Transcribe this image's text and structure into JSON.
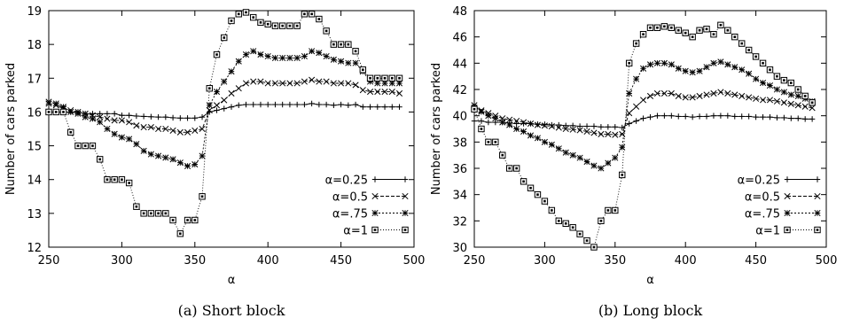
{
  "chart_data": [
    {
      "type": "line",
      "caption": "(a) Short block",
      "xlabel": "α",
      "ylabel": "Number of cars parked",
      "xlim": [
        250,
        500
      ],
      "ylim": [
        12,
        19
      ],
      "xticks": [
        250,
        300,
        350,
        400,
        450,
        500
      ],
      "yticks": [
        12,
        13,
        14,
        15,
        16,
        17,
        18,
        19
      ],
      "legend_position": "bottom-right",
      "x": [
        250,
        255,
        260,
        265,
        270,
        275,
        280,
        285,
        290,
        295,
        300,
        305,
        310,
        315,
        320,
        325,
        330,
        335,
        340,
        345,
        350,
        355,
        360,
        365,
        370,
        375,
        380,
        385,
        390,
        395,
        400,
        405,
        410,
        415,
        420,
        425,
        430,
        435,
        440,
        445,
        450,
        455,
        460,
        465,
        470,
        475,
        480,
        485,
        490
      ],
      "series": [
        {
          "name": "α=0.25",
          "marker": "plus",
          "dash": "",
          "values": [
            16.0,
            16.0,
            16.0,
            16.0,
            16.0,
            15.95,
            15.95,
            15.95,
            15.95,
            15.95,
            15.9,
            15.9,
            15.88,
            15.87,
            15.86,
            15.85,
            15.85,
            15.83,
            15.82,
            15.82,
            15.82,
            15.85,
            16.0,
            16.05,
            16.1,
            16.15,
            16.2,
            16.22,
            16.22,
            16.22,
            16.22,
            16.22,
            16.22,
            16.22,
            16.22,
            16.22,
            16.25,
            16.22,
            16.22,
            16.2,
            16.22,
            16.2,
            16.22,
            16.15,
            16.15,
            16.15,
            16.15,
            16.15,
            16.15
          ]
        },
        {
          "name": "α=0.5",
          "marker": "x",
          "dash": "4,2",
          "values": [
            16.25,
            16.2,
            16.1,
            16.05,
            16.0,
            15.95,
            15.9,
            15.85,
            15.8,
            15.75,
            15.75,
            15.7,
            15.6,
            15.55,
            15.55,
            15.5,
            15.5,
            15.45,
            15.4,
            15.4,
            15.45,
            15.5,
            16.05,
            16.2,
            16.35,
            16.55,
            16.7,
            16.85,
            16.9,
            16.9,
            16.85,
            16.85,
            16.85,
            16.85,
            16.85,
            16.9,
            16.95,
            16.9,
            16.9,
            16.85,
            16.85,
            16.85,
            16.8,
            16.65,
            16.6,
            16.6,
            16.6,
            16.6,
            16.55
          ]
        },
        {
          "name": "α=.75",
          "marker": "star",
          "dash": "2,2",
          "values": [
            16.3,
            16.25,
            16.15,
            16.0,
            15.95,
            15.85,
            15.8,
            15.7,
            15.5,
            15.35,
            15.25,
            15.2,
            15.05,
            14.85,
            14.75,
            14.7,
            14.65,
            14.6,
            14.5,
            14.4,
            14.45,
            14.7,
            16.2,
            16.6,
            16.9,
            17.2,
            17.5,
            17.7,
            17.8,
            17.7,
            17.65,
            17.6,
            17.6,
            17.6,
            17.6,
            17.65,
            17.8,
            17.75,
            17.65,
            17.55,
            17.5,
            17.45,
            17.45,
            17.2,
            16.9,
            16.85,
            16.85,
            16.85,
            16.85
          ]
        },
        {
          "name": "α=1",
          "marker": "square",
          "dash": "1,2",
          "values": [
            16.0,
            16.0,
            16.0,
            15.4,
            15.0,
            15.0,
            15.0,
            14.6,
            14.0,
            14.0,
            14.0,
            13.9,
            13.2,
            13.0,
            13.0,
            13.0,
            13.0,
            12.8,
            12.4,
            12.8,
            12.8,
            13.5,
            16.7,
            17.7,
            18.2,
            18.7,
            18.9,
            18.95,
            18.8,
            18.65,
            18.6,
            18.55,
            18.55,
            18.55,
            18.55,
            18.9,
            18.9,
            18.75,
            18.4,
            18.0,
            18.0,
            18.0,
            17.8,
            17.25,
            17.0,
            17.0,
            17.0,
            17.0,
            17.0
          ]
        }
      ]
    },
    {
      "type": "line",
      "caption": "(b) Long block",
      "xlabel": "α",
      "ylabel": "Number of cars parked",
      "xlim": [
        250,
        500
      ],
      "ylim": [
        30,
        48
      ],
      "xticks": [
        250,
        300,
        350,
        400,
        450,
        500
      ],
      "yticks": [
        30,
        32,
        34,
        36,
        38,
        40,
        42,
        44,
        46,
        48
      ],
      "legend_position": "bottom-right",
      "x": [
        250,
        255,
        260,
        265,
        270,
        275,
        280,
        285,
        290,
        295,
        300,
        305,
        310,
        315,
        320,
        325,
        330,
        335,
        340,
        345,
        350,
        355,
        360,
        365,
        370,
        375,
        380,
        385,
        390,
        395,
        400,
        405,
        410,
        415,
        420,
        425,
        430,
        435,
        440,
        445,
        450,
        455,
        460,
        465,
        470,
        475,
        480,
        485,
        490
      ],
      "series": [
        {
          "name": "α=0.25",
          "marker": "plus",
          "dash": "",
          "values": [
            39.6,
            39.6,
            39.5,
            39.5,
            39.5,
            39.45,
            39.4,
            39.4,
            39.4,
            39.35,
            39.35,
            39.3,
            39.3,
            39.25,
            39.25,
            39.2,
            39.2,
            39.2,
            39.15,
            39.15,
            39.15,
            39.1,
            39.4,
            39.6,
            39.8,
            39.9,
            40.0,
            40.0,
            40.0,
            39.95,
            39.95,
            39.9,
            39.95,
            39.95,
            40.0,
            40.0,
            40.0,
            39.95,
            39.95,
            39.95,
            39.9,
            39.9,
            39.9,
            39.85,
            39.85,
            39.8,
            39.8,
            39.75,
            39.75
          ]
        },
        {
          "name": "α=0.5",
          "marker": "x",
          "dash": "4,2",
          "values": [
            40.6,
            40.4,
            40.2,
            40.0,
            39.8,
            39.7,
            39.6,
            39.5,
            39.4,
            39.3,
            39.25,
            39.2,
            39.1,
            39.0,
            38.95,
            38.9,
            38.8,
            38.7,
            38.6,
            38.6,
            38.55,
            38.6,
            40.2,
            40.7,
            41.2,
            41.5,
            41.7,
            41.7,
            41.7,
            41.5,
            41.4,
            41.4,
            41.5,
            41.6,
            41.7,
            41.8,
            41.7,
            41.6,
            41.5,
            41.4,
            41.3,
            41.2,
            41.2,
            41.1,
            41.0,
            40.9,
            40.8,
            40.7,
            40.6
          ]
        },
        {
          "name": "α=.75",
          "marker": "star",
          "dash": "2,2",
          "values": [
            40.8,
            40.3,
            40.0,
            39.8,
            39.5,
            39.3,
            39.0,
            38.8,
            38.5,
            38.3,
            38.0,
            37.8,
            37.5,
            37.2,
            37.0,
            36.8,
            36.5,
            36.2,
            36.0,
            36.4,
            36.8,
            37.6,
            41.7,
            42.8,
            43.6,
            43.9,
            44.0,
            44.0,
            43.9,
            43.6,
            43.4,
            43.3,
            43.4,
            43.7,
            44.0,
            44.1,
            43.9,
            43.7,
            43.5,
            43.2,
            42.8,
            42.5,
            42.3,
            42.0,
            41.8,
            41.6,
            41.5,
            41.3,
            41.1
          ]
        },
        {
          "name": "α=1",
          "marker": "square",
          "dash": "1,2",
          "values": [
            40.5,
            39.0,
            38.0,
            38.0,
            37.0,
            36.0,
            36.0,
            35.0,
            34.5,
            34.0,
            33.5,
            32.8,
            32.0,
            31.8,
            31.5,
            31.0,
            30.5,
            30.0,
            32.0,
            32.8,
            32.8,
            35.5,
            44.0,
            45.5,
            46.2,
            46.7,
            46.7,
            46.8,
            46.7,
            46.5,
            46.3,
            46.0,
            46.5,
            46.6,
            46.2,
            46.9,
            46.5,
            46.0,
            45.5,
            45.0,
            44.5,
            44.0,
            43.5,
            43.0,
            42.7,
            42.5,
            42.0,
            41.5,
            41.0
          ]
        }
      ]
    }
  ]
}
